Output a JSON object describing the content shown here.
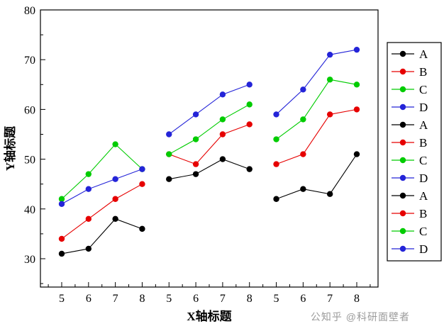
{
  "chart_data": {
    "type": "line",
    "title": "",
    "xlabel": "X轴标题",
    "ylabel": "Y轴标题",
    "ylim": [
      24.3,
      80
    ],
    "yticks": [
      30,
      40,
      50,
      60,
      70,
      80
    ],
    "y_minor_step": 5,
    "xticks": [
      "5",
      "6",
      "7",
      "8",
      "5",
      "6",
      "7",
      "8",
      "5",
      "6",
      "7",
      "8"
    ],
    "grid": false,
    "legend_position": "right-outside",
    "series": [
      {
        "name": "A",
        "color": "#000000",
        "group": 0,
        "x": [
          5,
          6,
          7,
          8
        ],
        "values": [
          31,
          32,
          38,
          36
        ]
      },
      {
        "name": "B",
        "color": "#e60000",
        "group": 0,
        "x": [
          5,
          6,
          7,
          8
        ],
        "values": [
          34,
          38,
          42,
          45
        ]
      },
      {
        "name": "C",
        "color": "#00cc00",
        "group": 0,
        "x": [
          5,
          6,
          7,
          8
        ],
        "values": [
          42,
          47,
          53,
          48
        ]
      },
      {
        "name": "D",
        "color": "#2424d8",
        "group": 0,
        "x": [
          5,
          6,
          7,
          8
        ],
        "values": [
          41,
          44,
          46,
          48
        ]
      },
      {
        "name": "A",
        "color": "#000000",
        "group": 1,
        "x": [
          5,
          6,
          7,
          8
        ],
        "values": [
          46,
          47,
          50,
          48
        ]
      },
      {
        "name": "B",
        "color": "#e60000",
        "group": 1,
        "x": [
          5,
          6,
          7,
          8
        ],
        "values": [
          51,
          49,
          55,
          57
        ]
      },
      {
        "name": "C",
        "color": "#00cc00",
        "group": 1,
        "x": [
          5,
          6,
          7,
          8
        ],
        "values": [
          51,
          54,
          58,
          61
        ]
      },
      {
        "name": "D",
        "color": "#2424d8",
        "group": 1,
        "x": [
          5,
          6,
          7,
          8
        ],
        "values": [
          55,
          59,
          63,
          65
        ]
      },
      {
        "name": "A",
        "color": "#000000",
        "group": 2,
        "x": [
          5,
          6,
          7,
          8
        ],
        "values": [
          42,
          44,
          43,
          51
        ]
      },
      {
        "name": "B",
        "color": "#e60000",
        "group": 2,
        "x": [
          5,
          6,
          7,
          8
        ],
        "values": [
          49,
          51,
          59,
          60
        ]
      },
      {
        "name": "C",
        "color": "#00cc00",
        "group": 2,
        "x": [
          5,
          6,
          7,
          8
        ],
        "values": [
          54,
          58,
          66,
          65
        ]
      },
      {
        "name": "D",
        "color": "#2424d8",
        "group": 2,
        "x": [
          5,
          6,
          7,
          8
        ],
        "values": [
          59,
          64,
          71,
          72
        ]
      }
    ]
  },
  "legend": {
    "entries": [
      {
        "label": "A",
        "color": "#000000"
      },
      {
        "label": "B",
        "color": "#e60000"
      },
      {
        "label": "C",
        "color": "#00cc00"
      },
      {
        "label": "D",
        "color": "#2424d8"
      },
      {
        "label": "A",
        "color": "#000000"
      },
      {
        "label": "B",
        "color": "#e60000"
      },
      {
        "label": "C",
        "color": "#00cc00"
      },
      {
        "label": "D",
        "color": "#2424d8"
      },
      {
        "label": "A",
        "color": "#000000"
      },
      {
        "label": "B",
        "color": "#e60000"
      },
      {
        "label": "C",
        "color": "#00cc00"
      },
      {
        "label": "D",
        "color": "#2424d8"
      }
    ]
  },
  "watermark": {
    "text": "公知乎 @科研面壁者"
  },
  "colors": {
    "black": "#000000",
    "red": "#e60000",
    "green": "#00cc00",
    "blue": "#2424d8"
  }
}
